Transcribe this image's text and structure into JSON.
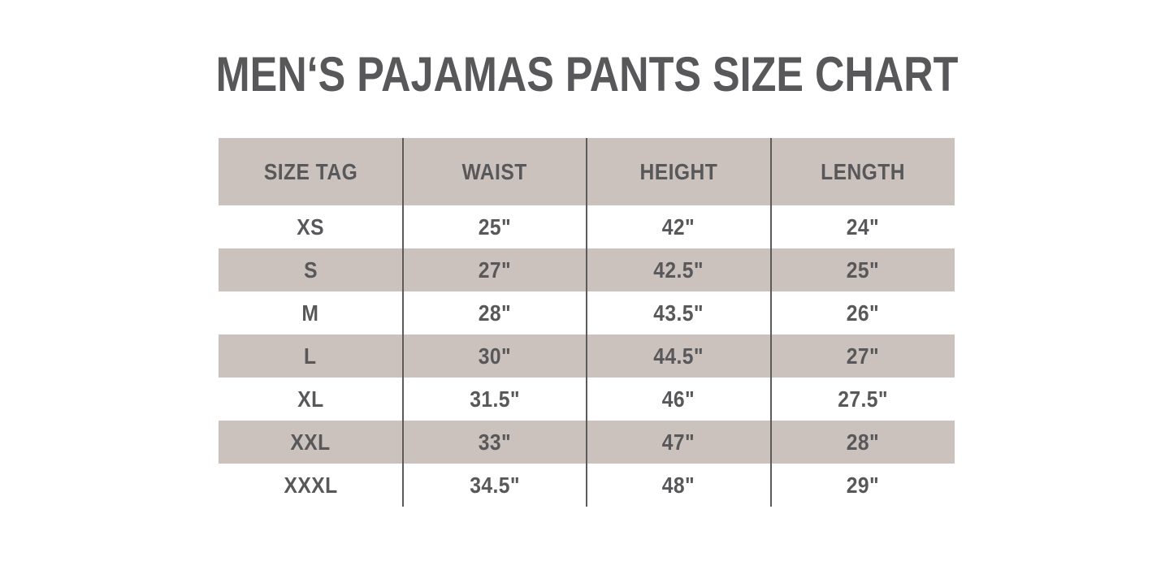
{
  "chart_data": {
    "type": "table",
    "title": "MEN‘S PAJAMAS PANTS SIZE CHART",
    "columns": [
      "SIZE TAG",
      "WAIST",
      "HEIGHT",
      "LENGTH"
    ],
    "rows": [
      [
        "XS",
        "25\"",
        "42\"",
        "24\""
      ],
      [
        "S",
        "27\"",
        "42.5\"",
        "25\""
      ],
      [
        "M",
        "28\"",
        "43.5\"",
        "26\""
      ],
      [
        "L",
        "30\"",
        "44.5\"",
        "27\""
      ],
      [
        "XL",
        "31.5\"",
        "46\"",
        "27.5\""
      ],
      [
        "XXL",
        "33\"",
        "47\"",
        "28\""
      ],
      [
        "XXXL",
        "34.5\"",
        "48\"",
        "29\""
      ]
    ],
    "layout": {
      "legend": "none",
      "grid": "vertical-dividers-only",
      "header_bg": "#cbc2bd",
      "zebra_row_bg": "#cbc2bd",
      "row_bg": "#ffffff",
      "text_color": "#58585a",
      "divider_color": "#5b5b5b",
      "page_background": "#ffffff"
    }
  }
}
